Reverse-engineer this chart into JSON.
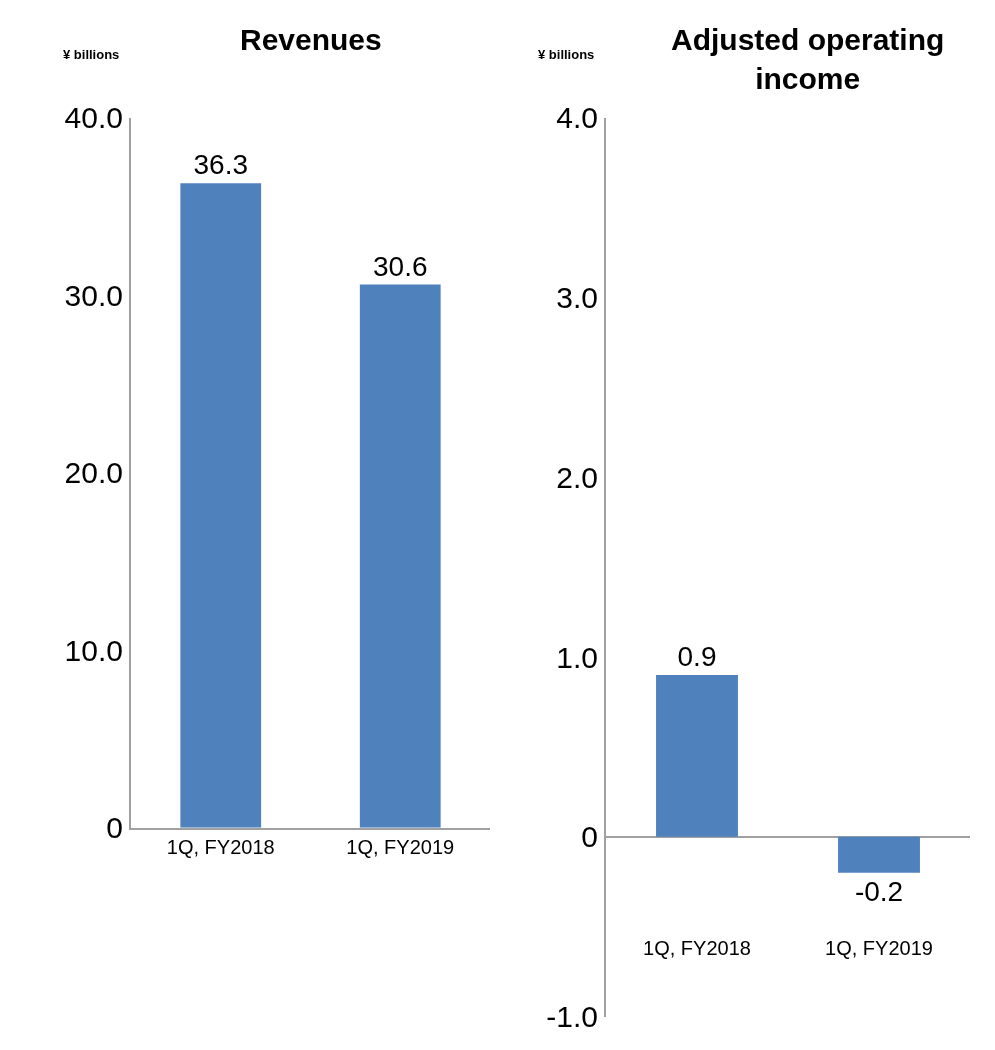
{
  "chart_data": [
    {
      "type": "bar",
      "title": "Revenues",
      "ylabel": "¥ billions",
      "categories": [
        "1Q, FY2018",
        "1Q, FY2019"
      ],
      "values": [
        36.3,
        30.6
      ],
      "color": "#4f81bd",
      "ylim": [
        0,
        40
      ],
      "yticks": [
        0,
        {
          "value": 10,
          "label": "10.0"
        },
        {
          "value": 20,
          "label": "20.0"
        },
        {
          "value": 30,
          "label": "30.0"
        },
        {
          "value": 40,
          "label": "40.0"
        }
      ],
      "data_labels": true
    },
    {
      "type": "bar",
      "title": "Adjusted operating income",
      "ylabel": "¥ billions",
      "categories": [
        "1Q, FY2018",
        "1Q, FY2019"
      ],
      "values": [
        0.9,
        -0.2
      ],
      "color": "#4f81bd",
      "ylim": [
        -1,
        4
      ],
      "yticks": [
        {
          "value": -1,
          "label": "-1.0"
        },
        0,
        {
          "value": 1,
          "label": "1.0"
        },
        {
          "value": 2,
          "label": "2.0"
        },
        {
          "value": 3,
          "label": "3.0"
        },
        {
          "value": 4,
          "label": "4.0"
        }
      ],
      "data_labels": true
    }
  ]
}
